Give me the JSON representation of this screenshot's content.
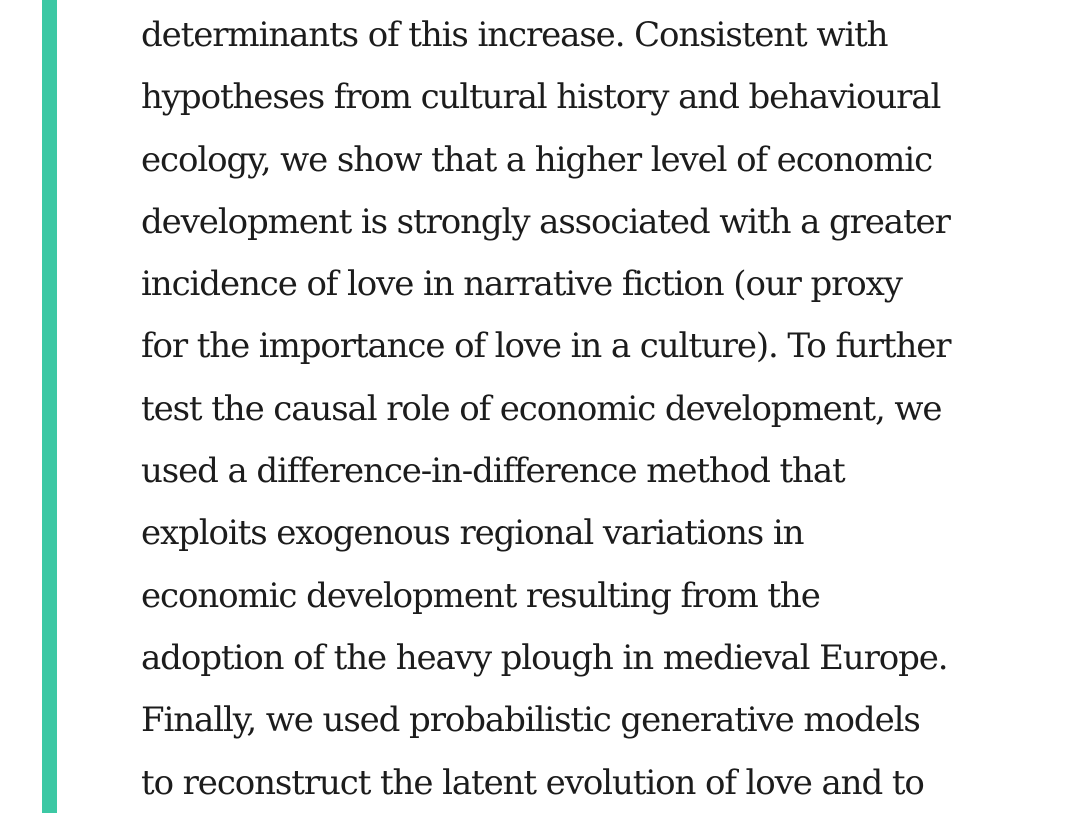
{
  "colors": {
    "accent_bar": "#3cc8a4",
    "text": "#1c1c1c",
    "background": "#ffffff"
  },
  "quote": {
    "lines": [
      "determinants of this increase. Consistent with",
      "hypotheses from cultural history and behavioural",
      "ecology, we show that a higher level of economic",
      "development is strongly associated with a greater",
      "incidence of love in narrative fiction (our proxy",
      "for the importance of love in a culture). To further",
      "test the causal role of economic development, we",
      "used a difference-in-difference method that",
      "exploits exogenous regional variations in",
      "economic development resulting from the",
      "adoption of the heavy plough in medieval Europe.",
      "Finally, we used probabilistic generative models",
      "to reconstruct the latent evolution of love and to"
    ]
  }
}
